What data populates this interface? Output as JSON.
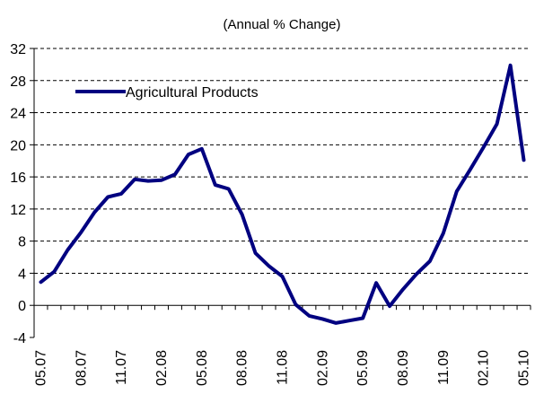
{
  "chart_data": {
    "type": "line",
    "title": "(Annual % Change)",
    "xlabel": "",
    "ylabel": "",
    "ylim": [
      -4,
      32
    ],
    "yticks": [
      -4,
      0,
      4,
      8,
      12,
      16,
      20,
      24,
      28,
      32
    ],
    "grid": "horizontal dashed",
    "legend_position": "top-left",
    "x_tick_labels": [
      "05.07",
      "08.07",
      "11.07",
      "02.08",
      "05.08",
      "08.08",
      "11.08",
      "02.09",
      "05.09",
      "08.09",
      "11.09",
      "02.10",
      "05.10"
    ],
    "x": [
      "05.07",
      "06.07",
      "07.07",
      "08.07",
      "09.07",
      "10.07",
      "11.07",
      "12.07",
      "01.08",
      "02.08",
      "03.08",
      "04.08",
      "05.08",
      "06.08",
      "07.08",
      "08.08",
      "09.08",
      "10.08",
      "11.08",
      "12.08",
      "01.09",
      "02.09",
      "03.09",
      "04.09",
      "05.09",
      "06.09",
      "07.09",
      "08.09",
      "09.09",
      "10.09",
      "11.09",
      "12.09",
      "01.10",
      "02.10",
      "03.10",
      "04.10",
      "05.10"
    ],
    "series": [
      {
        "name": "Agricultural Products",
        "color": "#000080",
        "values": [
          2.9,
          4.2,
          6.9,
          9.1,
          11.6,
          13.5,
          13.9,
          15.7,
          15.5,
          15.6,
          16.3,
          18.8,
          19.5,
          15.0,
          14.5,
          11.3,
          6.5,
          4.9,
          3.6,
          0.1,
          -1.3,
          -1.7,
          -2.2,
          -1.9,
          -1.6,
          2.8,
          -0.1,
          2.0,
          3.9,
          5.5,
          9.0,
          14.2,
          16.9,
          19.7,
          22.6,
          29.9,
          18.1
        ]
      }
    ]
  }
}
